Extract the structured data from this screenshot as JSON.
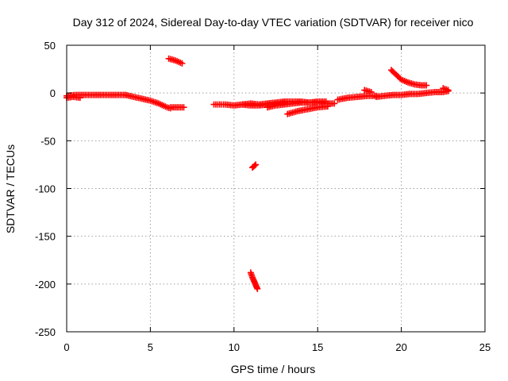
{
  "chart_data": {
    "type": "scatter",
    "title": "Day 312 of 2024, Sidereal Day-to-day VTEC variation (SDTVAR) for receiver nico",
    "xlabel": "GPS time / hours",
    "ylabel": "SDTVAR / TECUs",
    "xlim": [
      0,
      25
    ],
    "ylim": [
      -250,
      50
    ],
    "xticks": [
      0,
      5,
      10,
      15,
      20,
      25
    ],
    "yticks": [
      -250,
      -200,
      -150,
      -100,
      -50,
      0,
      50
    ],
    "grid": true,
    "marker": "plus",
    "color": "#ff0000",
    "series": [
      {
        "name": "SDTVAR",
        "arcs": [
          {
            "x": [
              0.0,
              0.5,
              1.0,
              1.5,
              2.0,
              2.5,
              3.0,
              3.5
            ],
            "y": [
              -3,
              -2,
              -2,
              -2,
              -2,
              -2,
              -2,
              -2
            ]
          },
          {
            "x": [
              0.0,
              0.4,
              0.8
            ],
            "y": [
              -5,
              -4,
              -5
            ]
          },
          {
            "x": [
              3.5,
              4.0,
              4.5,
              5.0,
              5.5,
              6.0,
              6.2
            ],
            "y": [
              -2,
              -4,
              -6,
              -8,
              -11,
              -15,
              -16
            ]
          },
          {
            "x": [
              6.2,
              6.6,
              7.0
            ],
            "y": [
              -15,
              -15,
              -15
            ]
          },
          {
            "x": [
              6.1,
              6.5,
              6.9
            ],
            "y": [
              36,
              34,
              31
            ]
          },
          {
            "x": [
              8.8,
              9.5,
              10.0,
              10.5,
              11.0,
              11.5,
              12.0,
              12.5,
              13.0,
              13.5,
              14.0,
              14.5,
              15.0,
              15.5,
              16.0
            ],
            "y": [
              -12,
              -12,
              -13,
              -12,
              -11,
              -12,
              -11,
              -10,
              -9,
              -9,
              -9,
              -10,
              -10,
              -11,
              -11
            ]
          },
          {
            "x": [
              10.5,
              11.0,
              11.5,
              12.0,
              12.5,
              13.0
            ],
            "y": [
              -12,
              -13,
              -13,
              -12,
              -11,
              -10
            ]
          },
          {
            "x": [
              12.0,
              12.5,
              13.0,
              13.5,
              14.0,
              14.5,
              15.0,
              15.5
            ],
            "y": [
              -15,
              -13,
              -12,
              -11,
              -10,
              -10,
              -9,
              -9
            ]
          },
          {
            "x": [
              13.2,
              13.8,
              14.4,
              15.0,
              15.6
            ],
            "y": [
              -22,
              -19,
              -17,
              -15,
              -14
            ]
          },
          {
            "x": [
              11.1,
              11.3
            ],
            "y": [
              -78,
              -75
            ]
          },
          {
            "x": [
              11.0,
              11.1,
              11.2,
              11.3,
              11.4
            ],
            "y": [
              -188,
              -193,
              -197,
              -201,
              -205
            ]
          },
          {
            "x": [
              16.2,
              16.8,
              17.4,
              18.0,
              18.5
            ],
            "y": [
              -7,
              -5,
              -4,
              -3,
              -3
            ]
          },
          {
            "x": [
              17.8,
              18.2
            ],
            "y": [
              3,
              1
            ]
          },
          {
            "x": [
              18.5,
              19.0,
              19.5,
              20.0,
              20.5,
              21.0,
              21.5,
              22.0,
              22.5,
              22.8
            ],
            "y": [
              -4,
              -3,
              -2,
              -2,
              -1,
              -1,
              0,
              1,
              1,
              2
            ]
          },
          {
            "x": [
              19.4,
              19.7,
              20.0,
              20.4,
              20.8,
              21.2,
              21.5
            ],
            "y": [
              24,
              19,
              14,
              11,
              9,
              8,
              8
            ]
          },
          {
            "x": [
              22.5,
              22.8
            ],
            "y": [
              5,
              3
            ]
          }
        ]
      }
    ]
  }
}
